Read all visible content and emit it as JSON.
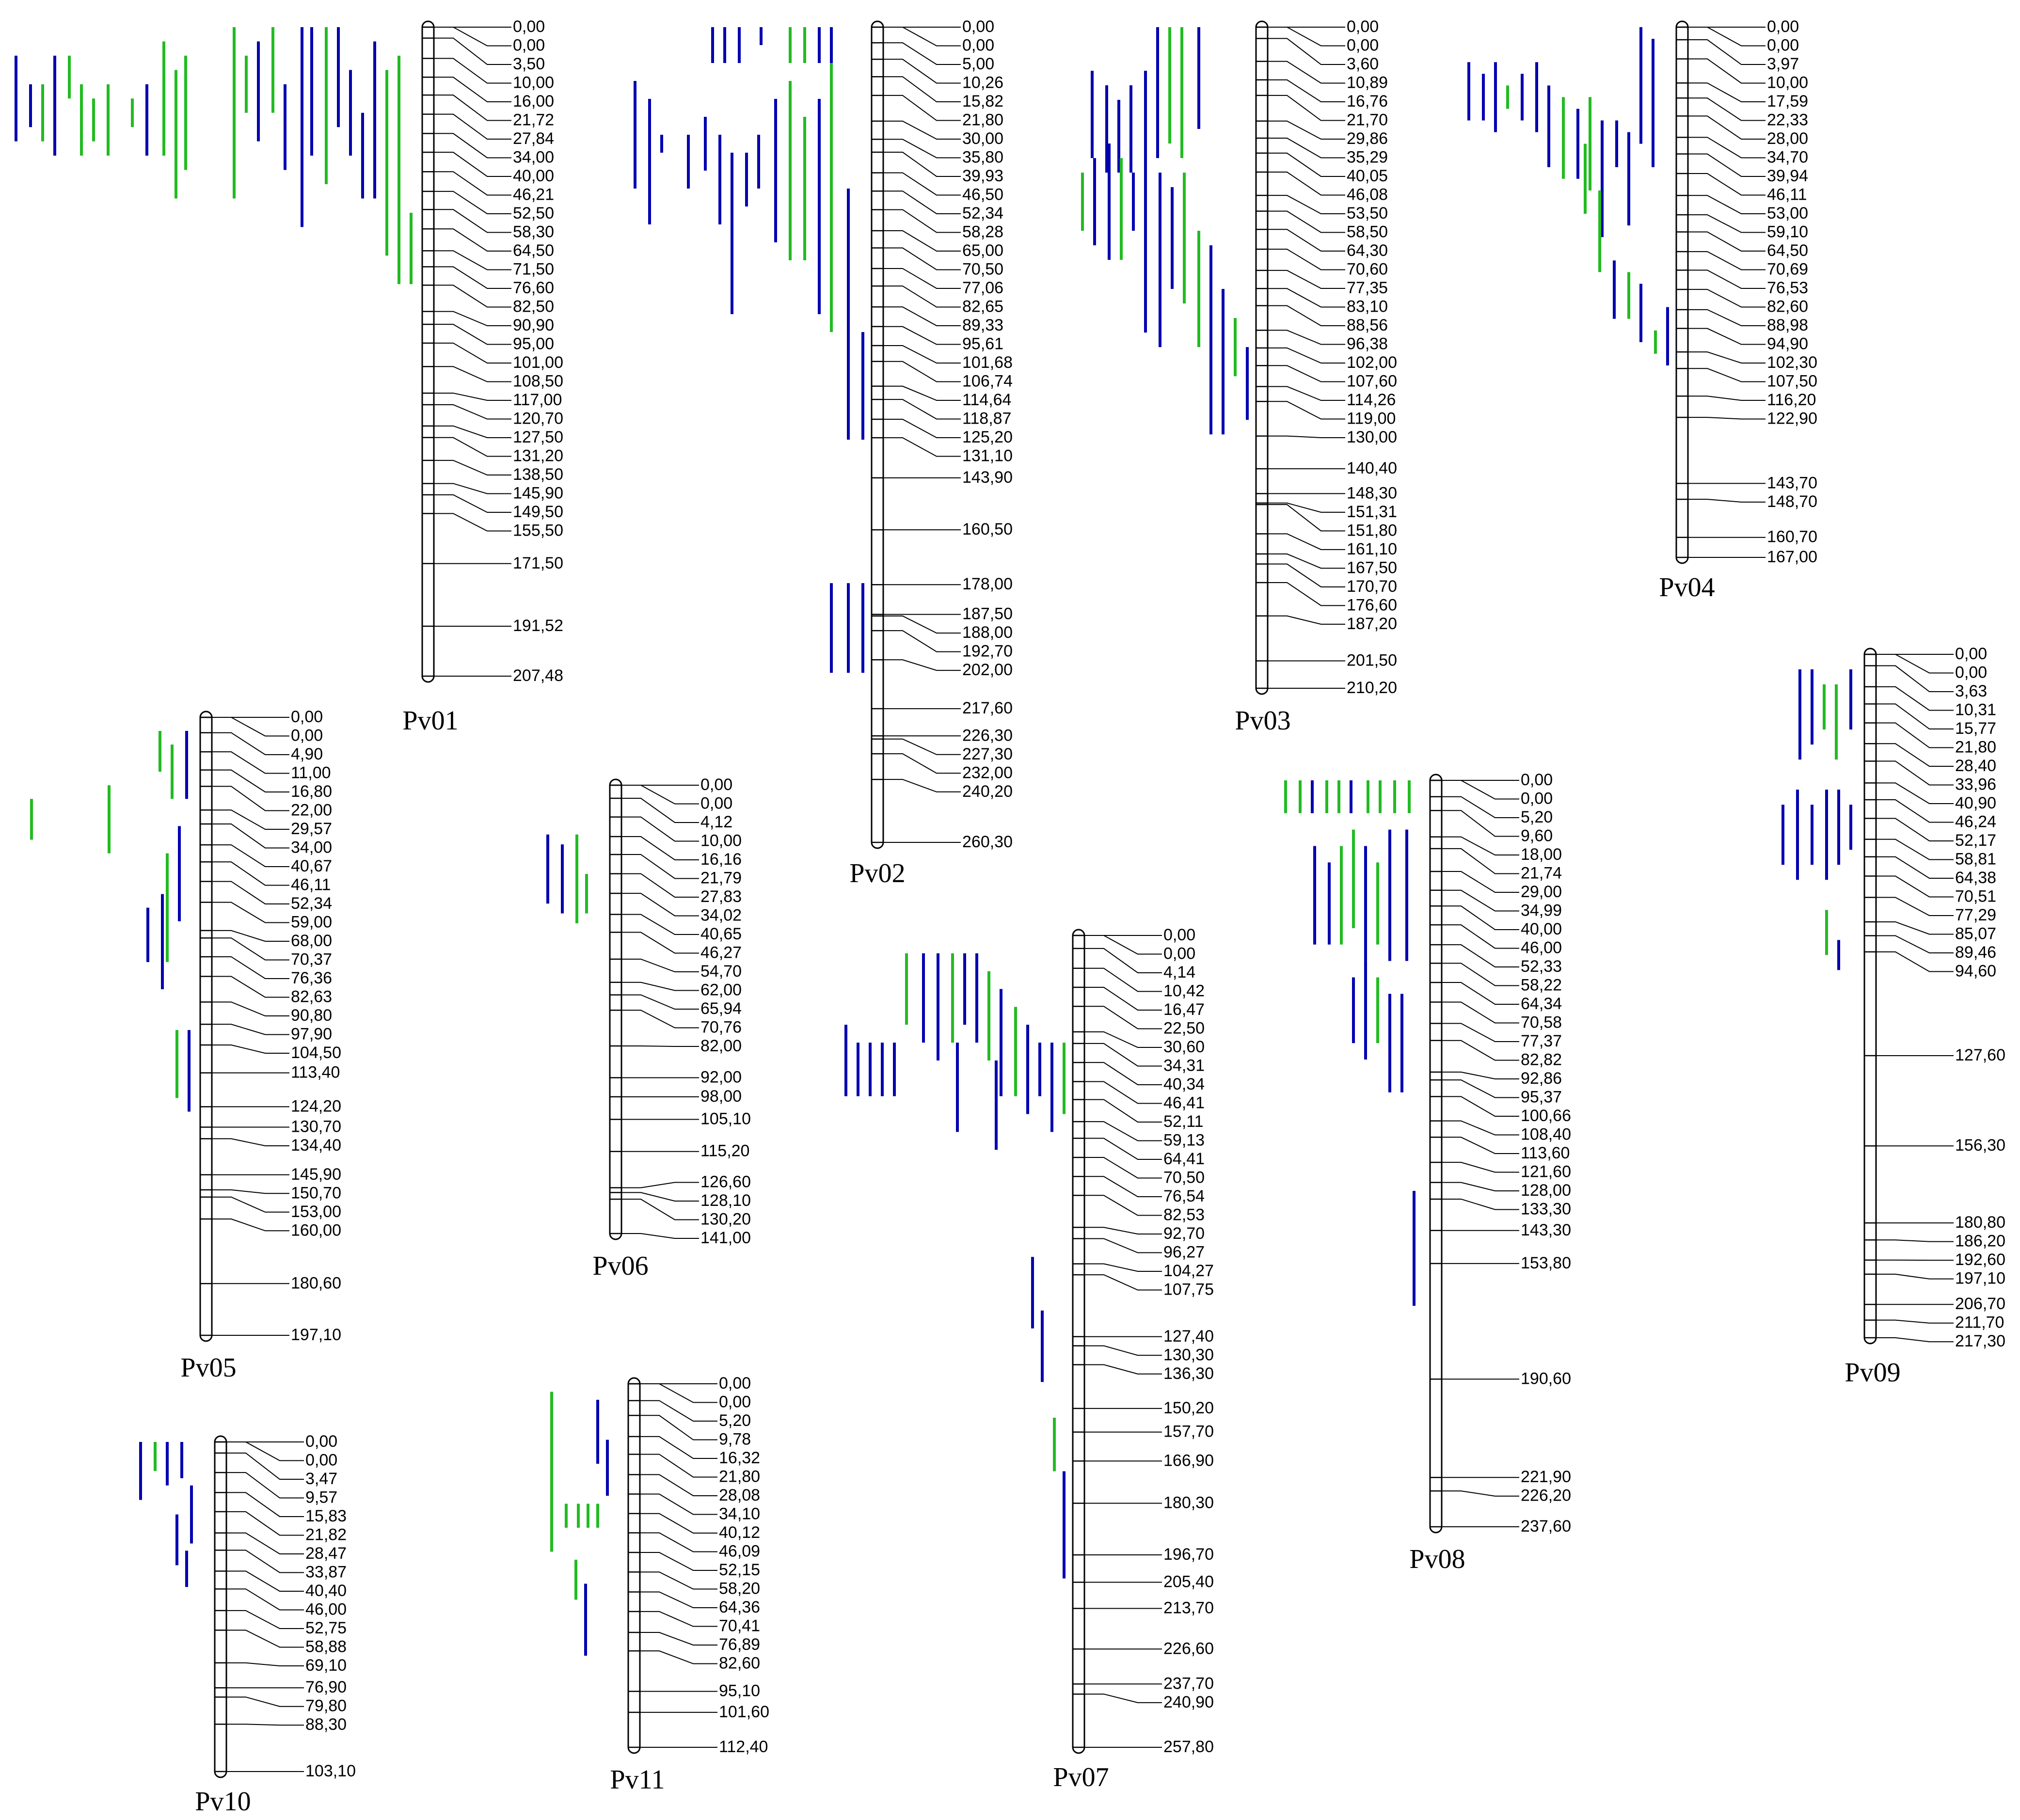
{
  "figure": {
    "qtl_colors": {
      "blue": "#0000b0",
      "green": "#22bb22"
    },
    "chromosomes": [
      {
        "id": "Pv01",
        "positions": [
          "0,00",
          "0,00",
          "3,50",
          "10,00",
          "16,00",
          "21,72",
          "27,84",
          "34,00",
          "40,00",
          "46,21",
          "52,50",
          "58,30",
          "64,50",
          "71,50",
          "76,60",
          "82,50",
          "90,90",
          "95,00",
          "101,00",
          "108,50",
          "117,00",
          "120,70",
          "127,50",
          "131,20",
          "138,50",
          "145,90",
          "149,50",
          "155,50",
          "171,50",
          "191,52",
          "207,48"
        ]
      },
      {
        "id": "Pv02",
        "positions": [
          "0,00",
          "0,00",
          "5,00",
          "10,26",
          "15,82",
          "21,80",
          "30,00",
          "35,80",
          "39,93",
          "46,50",
          "52,34",
          "58,28",
          "65,00",
          "70,50",
          "77,06",
          "82,65",
          "89,33",
          "95,61",
          "101,68",
          "106,74",
          "114,64",
          "118,87",
          "125,20",
          "131,10",
          "143,90",
          "160,50",
          "178,00",
          "187,50",
          "188,00",
          "192,70",
          "202,00",
          "217,60",
          "226,30",
          "227,30",
          "232,00",
          "240,20",
          "260,30"
        ]
      },
      {
        "id": "Pv03",
        "positions": [
          "0,00",
          "0,00",
          "3,60",
          "10,89",
          "16,76",
          "21,70",
          "29,86",
          "35,29",
          "40,05",
          "46,08",
          "53,50",
          "58,50",
          "64,30",
          "70,60",
          "77,35",
          "83,10",
          "88,56",
          "96,38",
          "102,00",
          "107,60",
          "114,26",
          "119,00",
          "130,00",
          "140,40",
          "148,30",
          "151,31",
          "151,80",
          "161,10",
          "167,50",
          "170,70",
          "176,60",
          "187,20",
          "201,50",
          "210,20"
        ]
      },
      {
        "id": "Pv04",
        "positions": [
          "0,00",
          "0,00",
          "3,97",
          "10,00",
          "17,59",
          "22,33",
          "28,00",
          "34,70",
          "39,94",
          "46,11",
          "53,00",
          "59,10",
          "64,50",
          "70,69",
          "76,53",
          "82,60",
          "88,98",
          "94,90",
          "102,30",
          "107,50",
          "116,20",
          "122,90",
          "143,70",
          "148,70",
          "160,70",
          "167,00"
        ]
      },
      {
        "id": "Pv05",
        "positions": [
          "0,00",
          "0,00",
          "4,90",
          "11,00",
          "16,80",
          "22,00",
          "29,57",
          "34,00",
          "40,67",
          "46,11",
          "52,34",
          "59,00",
          "68,00",
          "70,37",
          "76,36",
          "82,63",
          "90,80",
          "97,90",
          "104,50",
          "113,40",
          "124,20",
          "130,70",
          "134,40",
          "145,90",
          "150,70",
          "153,00",
          "160,00",
          "180,60",
          "197,10"
        ]
      },
      {
        "id": "Pv06",
        "positions": [
          "0,00",
          "0,00",
          "4,12",
          "10,00",
          "16,16",
          "21,79",
          "27,83",
          "34,02",
          "40,65",
          "46,27",
          "54,70",
          "62,00",
          "65,94",
          "70,76",
          "82,00",
          "92,00",
          "98,00",
          "105,10",
          "115,20",
          "126,60",
          "128,10",
          "130,20",
          "141,00"
        ]
      },
      {
        "id": "Pv07",
        "positions": [
          "0,00",
          "0,00",
          "4,14",
          "10,42",
          "16,47",
          "22,50",
          "30,60",
          "34,31",
          "40,34",
          "46,41",
          "52,11",
          "59,13",
          "64,41",
          "70,50",
          "76,54",
          "82,53",
          "92,70",
          "96,27",
          "104,27",
          "107,75",
          "127,40",
          "130,30",
          "136,30",
          "150,20",
          "157,70",
          "166,90",
          "180,30",
          "196,70",
          "205,40",
          "213,70",
          "226,60",
          "237,70",
          "240,90",
          "257,80"
        ]
      },
      {
        "id": "Pv08",
        "positions": [
          "0,00",
          "0,00",
          "5,20",
          "9,60",
          "18,00",
          "21,74",
          "29,00",
          "34,99",
          "40,00",
          "46,00",
          "52,33",
          "58,22",
          "64,34",
          "70,58",
          "77,37",
          "82,82",
          "92,86",
          "95,37",
          "100,66",
          "108,40",
          "113,60",
          "121,60",
          "128,00",
          "133,30",
          "143,30",
          "153,80",
          "190,60",
          "221,90",
          "226,20",
          "237,60"
        ]
      },
      {
        "id": "Pv09",
        "positions": [
          "0,00",
          "0,00",
          "3,63",
          "10,31",
          "15,77",
          "21,80",
          "28,40",
          "33,96",
          "40,90",
          "46,24",
          "52,17",
          "58,81",
          "64,38",
          "70,51",
          "77,29",
          "85,07",
          "89,46",
          "94,60",
          "127,60",
          "156,30",
          "180,80",
          "186,20",
          "192,60",
          "197,10",
          "206,70",
          "211,70",
          "217,30"
        ]
      },
      {
        "id": "Pv10",
        "positions": [
          "0,00",
          "0,00",
          "3,47",
          "9,57",
          "15,83",
          "21,82",
          "28,47",
          "33,87",
          "40,40",
          "46,00",
          "52,75",
          "58,88",
          "69,10",
          "76,90",
          "79,80",
          "88,30",
          "103,10"
        ]
      },
      {
        "id": "Pv11",
        "positions": [
          "0,00",
          "0,00",
          "5,20",
          "9,78",
          "16,32",
          "21,80",
          "28,08",
          "34,10",
          "40,12",
          "46,09",
          "52,15",
          "58,20",
          "64,36",
          "70,41",
          "76,89",
          "82,60",
          "95,10",
          "101,60",
          "112,40"
        ]
      }
    ]
  }
}
